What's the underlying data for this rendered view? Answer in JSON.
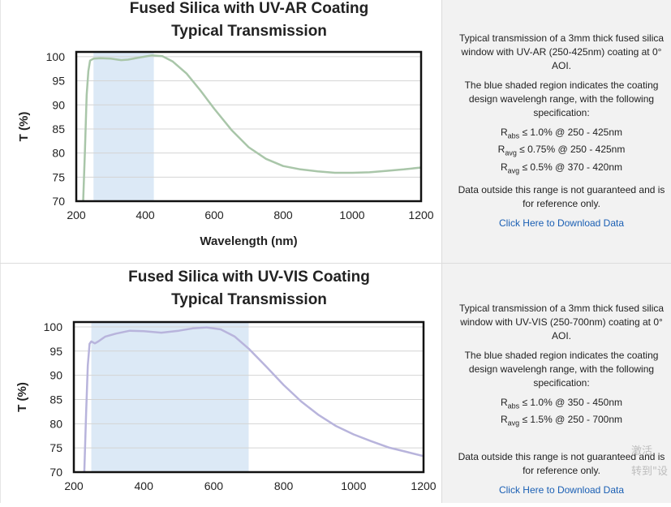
{
  "chart_data": [
    {
      "type": "line",
      "title": "Fused Silica with UV-AR Coating",
      "subtitle": "Typical Transmission",
      "xlabel": "Wavelength (nm)",
      "ylabel": "T (%)",
      "xlim": [
        200,
        1200
      ],
      "ylim": [
        70,
        101
      ],
      "x_ticks": [
        200,
        400,
        600,
        800,
        1000,
        1200
      ],
      "y_ticks": [
        70,
        75,
        80,
        85,
        90,
        95,
        100
      ],
      "grid": "horizontal",
      "shaded_region": [
        250,
        425
      ],
      "series_color": "#a9c6a9",
      "shade_color": "#dce9f6",
      "series": [
        {
          "x": [
            220,
            225,
            230,
            235,
            240,
            250,
            270,
            300,
            330,
            350,
            380,
            420,
            450,
            480,
            520,
            560,
            600,
            650,
            700,
            750,
            800,
            850,
            900,
            950,
            1000,
            1050,
            1100,
            1150,
            1200
          ],
          "values": [
            70,
            80,
            92,
            97,
            99.2,
            99.6,
            99.7,
            99.6,
            99.3,
            99.4,
            99.8,
            100.3,
            100.1,
            99.0,
            96.5,
            93.0,
            89.2,
            84.8,
            81.2,
            78.8,
            77.3,
            76.6,
            76.2,
            75.9,
            75.9,
            76.0,
            76.3,
            76.6,
            77.0
          ]
        }
      ]
    },
    {
      "type": "line",
      "title": "Fused Silica with UV-VIS Coating",
      "subtitle": "Typical Transmission",
      "xlabel": "",
      "ylabel": "T (%)",
      "xlim": [
        200,
        1200
      ],
      "ylim": [
        70,
        101
      ],
      "x_ticks": [
        200,
        400,
        600,
        800,
        1000,
        1200
      ],
      "y_ticks": [
        70,
        75,
        80,
        85,
        90,
        95,
        100
      ],
      "grid": "horizontal",
      "shaded_region": [
        250,
        700
      ],
      "series_color": "#b8b4dc",
      "shade_color": "#dce9f6",
      "series": [
        {
          "x": [
            230,
            235,
            240,
            245,
            250,
            260,
            270,
            290,
            320,
            360,
            400,
            450,
            500,
            540,
            580,
            620,
            660,
            700,
            750,
            800,
            850,
            900,
            950,
            1000,
            1050,
            1100,
            1150,
            1200
          ],
          "values": [
            70,
            82,
            92,
            96.5,
            97.0,
            96.6,
            97.0,
            98.0,
            98.6,
            99.2,
            99.1,
            98.8,
            99.2,
            99.7,
            99.9,
            99.5,
            98.0,
            95.5,
            91.8,
            88.0,
            84.6,
            81.8,
            79.5,
            77.8,
            76.4,
            75.1,
            74.2,
            73.3
          ]
        }
      ]
    }
  ],
  "panels": [
    {
      "desc_intro": "Typical transmission of a 3mm thick fused silica window with UV-AR (250-425nm) coating at 0° AOI.",
      "desc_shade": "The blue shaded region indicates the coating design wavelengh range, with the following specification:",
      "specs": [
        {
          "label": "R",
          "sub": "abs",
          "text": " ≤ 1.0% @ 250 - 425nm"
        },
        {
          "label": "R",
          "sub": "avg",
          "text": " ≤ 0.75% @ 250 - 425nm"
        },
        {
          "label": "R",
          "sub": "avg",
          "text": " ≤ 0.5% @ 370 - 420nm"
        }
      ],
      "desc_note": "Data outside this range is not guaranteed and is for reference only.",
      "download_label": "Click Here to Download Data"
    },
    {
      "desc_intro": "Typical transmission of a 3mm thick fused silica window with UV-VIS (250-700nm) coating at 0° AOI.",
      "desc_shade": "The blue shaded region indicates the coating design wavelengh range, with the following specification:",
      "specs": [
        {
          "label": "R",
          "sub": "abs",
          "text": " ≤ 1.0% @ 350 - 450nm"
        },
        {
          "label": "R",
          "sub": "avg",
          "text": " ≤ 1.5% @ 250 - 700nm"
        }
      ],
      "desc_note": "Data outside this range is not guaranteed and is for reference only.",
      "download_label": "Click Here to Download Data"
    }
  ],
  "watermark": {
    "line1": "激活",
    "line2": "转到\"设"
  }
}
